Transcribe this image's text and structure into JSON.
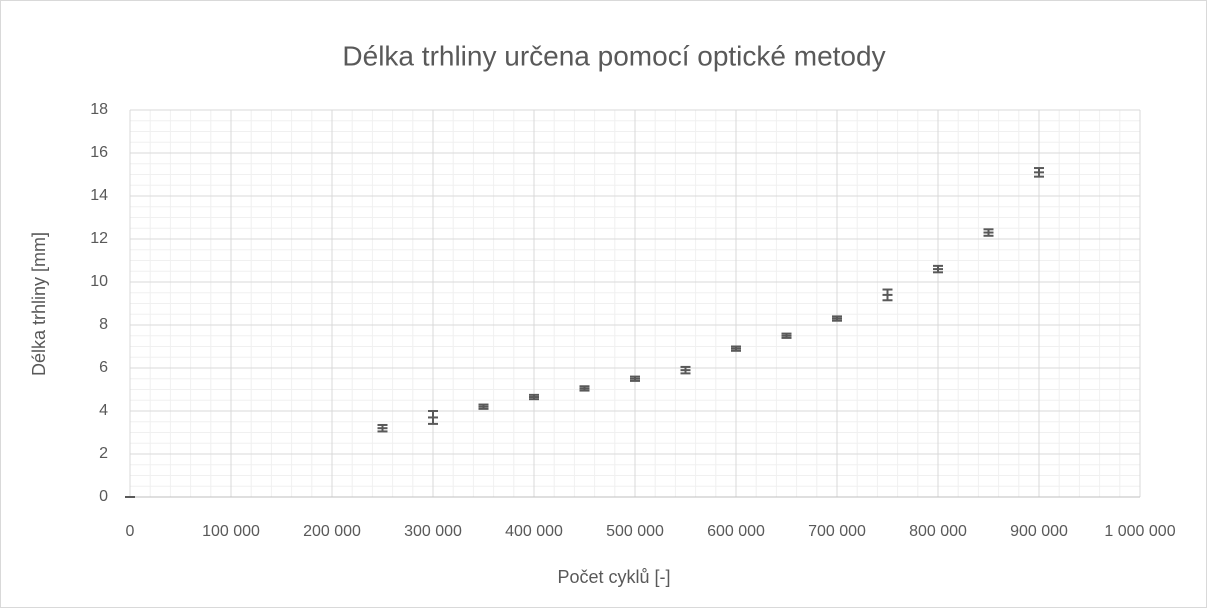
{
  "chart_data": {
    "type": "scatter",
    "title": "Délka trhliny určena pomocí optické metody",
    "x_label": "Počet cyklů [-]",
    "y_label": "Délka trhliny [mm]",
    "x": [
      0,
      250000,
      300000,
      350000,
      400000,
      450000,
      500000,
      550000,
      600000,
      650000,
      700000,
      750000,
      800000,
      850000,
      900000
    ],
    "values": [
      0,
      3.2,
      3.7,
      4.2,
      4.65,
      5.05,
      5.5,
      5.9,
      6.9,
      7.5,
      8.3,
      9.4,
      10.6,
      12.3,
      15.1
    ],
    "errors": [
      0,
      0.15,
      0.3,
      0.1,
      0.1,
      0.1,
      0.1,
      0.15,
      0.1,
      0.1,
      0.1,
      0.25,
      0.15,
      0.15,
      0.2
    ],
    "color": "#595959",
    "xlim": [
      0,
      1000000
    ],
    "xticks": [
      0,
      {
        "value": 100000,
        "label": "100 000"
      },
      {
        "value": 200000,
        "label": "200 000"
      },
      {
        "value": 300000,
        "label": "300 000"
      },
      {
        "value": 400000,
        "label": "400 000"
      },
      {
        "value": 500000,
        "label": "500 000"
      },
      {
        "value": 600000,
        "label": "600 000"
      },
      {
        "value": 700000,
        "label": "700 000"
      },
      {
        "value": 800000,
        "label": "800 000"
      },
      {
        "value": 900000,
        "label": "900 000"
      },
      {
        "value": 1000000,
        "label": "1 000 000"
      }
    ],
    "ylim": [
      0,
      18
    ],
    "yticks": [
      0,
      2,
      4,
      6,
      8,
      10,
      12,
      14,
      16,
      18
    ],
    "grid": true,
    "minor_grid": true
  }
}
